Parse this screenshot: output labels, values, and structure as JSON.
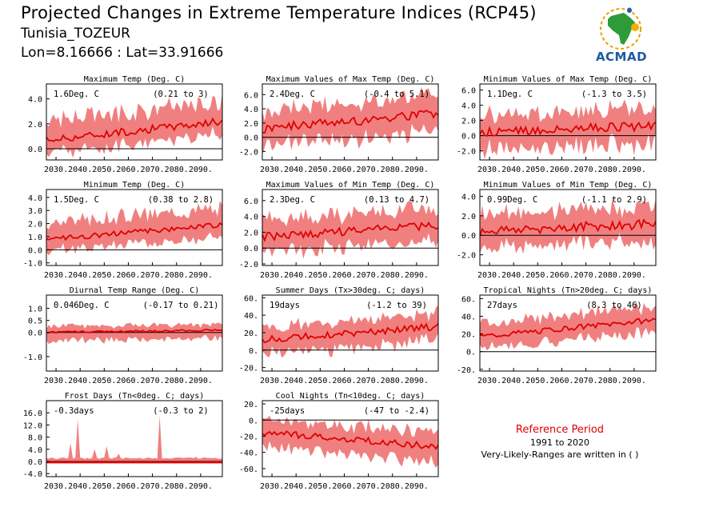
{
  "header": {
    "title": "Projected Changes in Extreme Temperature Indices (RCP45)",
    "station": "Tunisia_TOZEUR",
    "coords": "Lon=8.16666 : Lat=33.91666"
  },
  "logo": {
    "text": "ACMAD"
  },
  "legend": {
    "title": "Reference Period",
    "period": "1991 to 2020",
    "note": "Very-Likely-Ranges are written in ( )"
  },
  "colors": {
    "band": "#f08080",
    "line": "#e00000",
    "axis": "#000000"
  },
  "chart_data": [
    {
      "type": "area",
      "title": "Maximum Temp (Deg. C)",
      "change": "1.6Deg. C",
      "range": "(0.21 to 3)",
      "ylim": [
        -0.9,
        5.2
      ],
      "yticks": [
        -0.0,
        2.0,
        4.0
      ],
      "ytick_labels": [
        "0.0",
        "2.0",
        "4.0"
      ],
      "xticks": [
        "2030.",
        "2040.",
        "2050.",
        "2060.",
        "2070.",
        "2080.",
        "2090."
      ],
      "xlim": [
        2026,
        2099
      ],
      "trend": {
        "start": 0.7,
        "end": 2.2,
        "amp": 0.3,
        "spread_lo": 1.0,
        "spread_hi": 1.6
      }
    },
    {
      "type": "area",
      "title": "Maximum Values of Max Temp (Deg. C)",
      "change": "2.4Deg. C",
      "range": "(-0.4 to 5.1)",
      "ylim": [
        -3.2,
        7.5
      ],
      "yticks": [
        -2.0,
        0.0,
        2.0,
        4.0,
        6.0
      ],
      "ytick_labels": [
        "-2.0",
        "0.0",
        "2.0",
        "4.0",
        "6.0"
      ],
      "xticks": [
        "2030.",
        "2040.",
        "2050.",
        "2060.",
        "2070.",
        "2080.",
        "2090."
      ],
      "xlim": [
        2026,
        2099
      ],
      "trend": {
        "start": 1.2,
        "end": 3.4,
        "amp": 0.7,
        "spread_lo": 2.5,
        "spread_hi": 2.5
      }
    },
    {
      "type": "area",
      "title": "Minimum Values of Max Temp (Deg. C)",
      "change": "1.1Deg. C",
      "range": "(-1.3 to 3.5)",
      "ylim": [
        -3.2,
        6.8
      ],
      "yticks": [
        -2.0,
        0.0,
        2.0,
        4.0,
        6.0
      ],
      "ytick_labels": [
        "-2.0",
        "0.0",
        "2.0",
        "4.0",
        "6.0"
      ],
      "xticks": [
        "2030.",
        "2040.",
        "2050.",
        "2060.",
        "2070.",
        "2080.",
        "2090."
      ],
      "xlim": [
        2026,
        2099
      ],
      "trend": {
        "start": 0.4,
        "end": 1.3,
        "amp": 0.6,
        "spread_lo": 2.3,
        "spread_hi": 2.3
      }
    },
    {
      "type": "area",
      "title": "Minimum Temp (Deg. C)",
      "change": "1.5Deg. C",
      "range": "(0.38 to 2.8)",
      "ylim": [
        -1.2,
        4.6
      ],
      "yticks": [
        -1.0,
        0.0,
        1.0,
        2.0,
        3.0,
        4.0
      ],
      "ytick_labels": [
        "-1.0",
        "0.0",
        "1.0",
        "2.0",
        "3.0",
        "4.0"
      ],
      "xticks": [
        "2030.",
        "2040.",
        "2050.",
        "2060.",
        "2070.",
        "2080.",
        "2090."
      ],
      "xlim": [
        2026,
        2099
      ],
      "trend": {
        "start": 0.8,
        "end": 1.9,
        "amp": 0.2,
        "spread_lo": 0.9,
        "spread_hi": 1.3
      }
    },
    {
      "type": "area",
      "title": "Maximum Values of Min Temp (Deg. C)",
      "change": "2.3Deg. C",
      "range": "(0.13 to 4.7)",
      "ylim": [
        -2.2,
        7.4
      ],
      "yticks": [
        -2.0,
        0.0,
        2.0,
        4.0,
        6.0
      ],
      "ytick_labels": [
        "-2.0",
        "0.0",
        "2.0",
        "4.0",
        "6.0"
      ],
      "xticks": [
        "2030.",
        "2040.",
        "2050.",
        "2060.",
        "2070.",
        "2080.",
        "2090."
      ],
      "xlim": [
        2026,
        2099
      ],
      "trend": {
        "start": 1.4,
        "end": 2.9,
        "amp": 0.5,
        "spread_lo": 2.0,
        "spread_hi": 2.2
      }
    },
    {
      "type": "area",
      "title": "Minimum Values of Min Temp (Deg. C)",
      "change": "0.99Deg. C",
      "range": "(-1.1 to 2.9)",
      "ylim": [
        -3.1,
        4.7
      ],
      "yticks": [
        -2.0,
        0.0,
        2.0,
        4.0
      ],
      "ytick_labels": [
        "-2.0",
        "0.0",
        "2.0",
        "4.0"
      ],
      "xticks": [
        "2030.",
        "2040.",
        "2050.",
        "2060.",
        "2070.",
        "2080.",
        "2090."
      ],
      "xlim": [
        2026,
        2099
      ],
      "trend": {
        "start": 0.4,
        "end": 1.2,
        "amp": 0.5,
        "spread_lo": 1.8,
        "spread_hi": 1.8
      }
    },
    {
      "type": "area",
      "title": "Diurnal Temp Range (Deg. C)",
      "change": "0.046Deg. C",
      "range": "(-0.17 to 0.21)",
      "ylim": [
        -1.6,
        1.55
      ],
      "yticks": [
        -1.0,
        0.0,
        0.5,
        1.0
      ],
      "ytick_labels": [
        "-1.0",
        "0.0",
        "0.5",
        "1.0"
      ],
      "xticks": [
        "2030.",
        "2040.",
        "2050.",
        "2060.",
        "2070.",
        "2080.",
        "2090."
      ],
      "xlim": [
        2026,
        2099
      ],
      "trend": {
        "start": 0.0,
        "end": 0.1,
        "amp": 0.04,
        "spread_lo": 0.35,
        "spread_hi": 0.25
      }
    },
    {
      "type": "area",
      "title": "Summer Days (Tx>30deg. C; days)",
      "change": "19days",
      "range": "(-1.2 to 39)",
      "ylim": [
        -24,
        63
      ],
      "yticks": [
        -20,
        0,
        20,
        40,
        60
      ],
      "ytick_labels": [
        "-20.",
        "0.",
        "20.",
        "40.",
        "60."
      ],
      "xticks": [
        "2030.",
        "2040.",
        "2050.",
        "2060.",
        "2070.",
        "2080.",
        "2090."
      ],
      "xlim": [
        2026,
        2099
      ],
      "trend": {
        "start": 12,
        "end": 27,
        "amp": 4,
        "spread_lo": 16,
        "spread_hi": 15
      }
    },
    {
      "type": "area",
      "title": "Tropical Nights (Tn>20deg. C; days)",
      "change": "27days",
      "range": "(8.3 to 46)",
      "ylim": [
        -22,
        64
      ],
      "yticks": [
        -20,
        0,
        20,
        40,
        60
      ],
      "ytick_labels": [
        "-20.",
        "0.",
        "20.",
        "40.",
        "60."
      ],
      "xticks": [
        "2030.",
        "2040.",
        "2050.",
        "2060.",
        "2070.",
        "2080.",
        "2090."
      ],
      "xlim": [
        2026,
        2099
      ],
      "trend": {
        "start": 17,
        "end": 36,
        "amp": 3,
        "spread_lo": 14,
        "spread_hi": 15
      }
    },
    {
      "type": "area",
      "title": "Frost Days (Tn<0deg. C; days)",
      "change": "-0.3days",
      "range": "(-0.3 to 2)",
      "ylim": [
        -5,
        20
      ],
      "yticks": [
        -4.0,
        0.0,
        4.0,
        8.0,
        12.0,
        16.0
      ],
      "ytick_labels": [
        "-4.0",
        "0.0",
        "4.0",
        "8.0",
        "12.0",
        "16.0"
      ],
      "xticks": [
        "2030.",
        "2040.",
        "2050.",
        "2060.",
        "2070.",
        "2080.",
        "2090."
      ],
      "xlim": [
        2026,
        2099
      ],
      "trend": {
        "start": -0.3,
        "end": -0.3,
        "amp": 0,
        "spread_lo": 0.2,
        "spread_hi": 1.5
      }
    },
    {
      "type": "area",
      "title": "Cool Nights (Tn<10deg. C; days)",
      "change": "-25days",
      "range": "(-47 to -2.4)",
      "ylim": [
        -70,
        24
      ],
      "yticks": [
        -60,
        -40,
        -20,
        0,
        20
      ],
      "ytick_labels": [
        "-60.",
        "-40.",
        "-20.",
        "0.",
        "20."
      ],
      "xticks": [
        "2030.",
        "2040.",
        "2050.",
        "2060.",
        "2070.",
        "2080.",
        "2090."
      ],
      "xlim": [
        2026,
        2099
      ],
      "trend": {
        "start": -15,
        "end": -33,
        "amp": 4,
        "spread_lo": 18,
        "spread_hi": 17
      }
    }
  ]
}
